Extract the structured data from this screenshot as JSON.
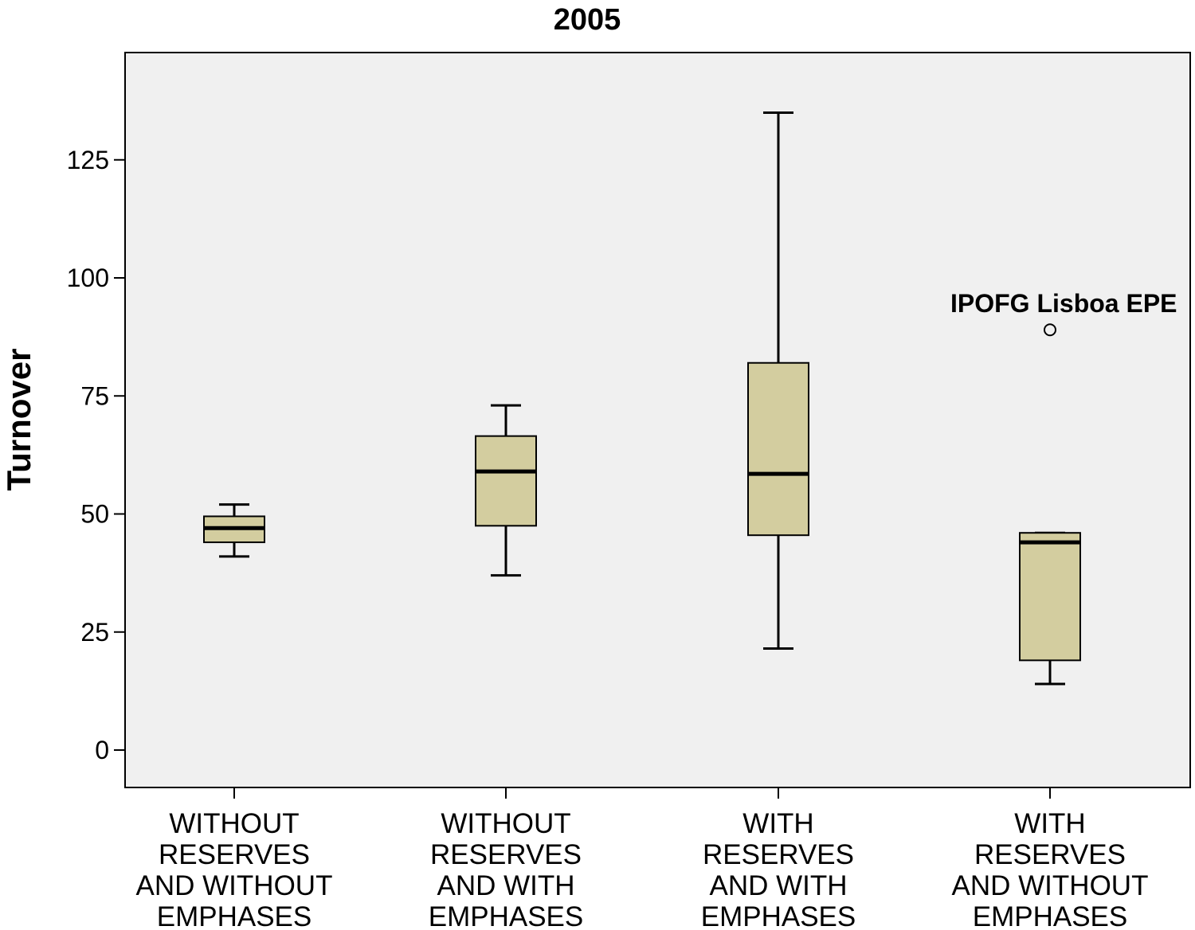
{
  "chart_data": {
    "type": "box",
    "title": "2005",
    "xlabel": "",
    "ylabel": "Turnover",
    "ylim": [
      -8,
      148
    ],
    "yticks": [
      0,
      25,
      50,
      75,
      100,
      125
    ],
    "grid": false,
    "colors": {
      "box_fill": "#d3cd9f",
      "plot_bg": "#f0f0f0",
      "stroke": "#000000"
    },
    "categories": [
      {
        "lines": [
          "WITHOUT",
          "RESERVES",
          "AND WITHOUT",
          "EMPHASES"
        ]
      },
      {
        "lines": [
          "WITHOUT",
          "RESERVES",
          "AND WITH",
          "EMPHASES"
        ]
      },
      {
        "lines": [
          "WITH",
          "RESERVES",
          "AND WITH",
          "EMPHASES"
        ]
      },
      {
        "lines": [
          "WITH",
          "RESERVES",
          "AND WITHOUT",
          "EMPHASES"
        ]
      }
    ],
    "boxes": [
      {
        "min": 41,
        "q1": 44,
        "median": 47,
        "q3": 49.5,
        "max": 52
      },
      {
        "min": 37,
        "q1": 47.5,
        "median": 59,
        "q3": 66.5,
        "max": 73
      },
      {
        "min": 21.5,
        "q1": 45.5,
        "median": 58.5,
        "q3": 82,
        "max": 135
      },
      {
        "min": 14,
        "q1": 19,
        "median": 44,
        "q3": 46,
        "max": 46
      }
    ],
    "outliers": [
      {
        "category_index": 3,
        "value": 89,
        "label": "IPOFG Lisboa EPE"
      }
    ]
  }
}
